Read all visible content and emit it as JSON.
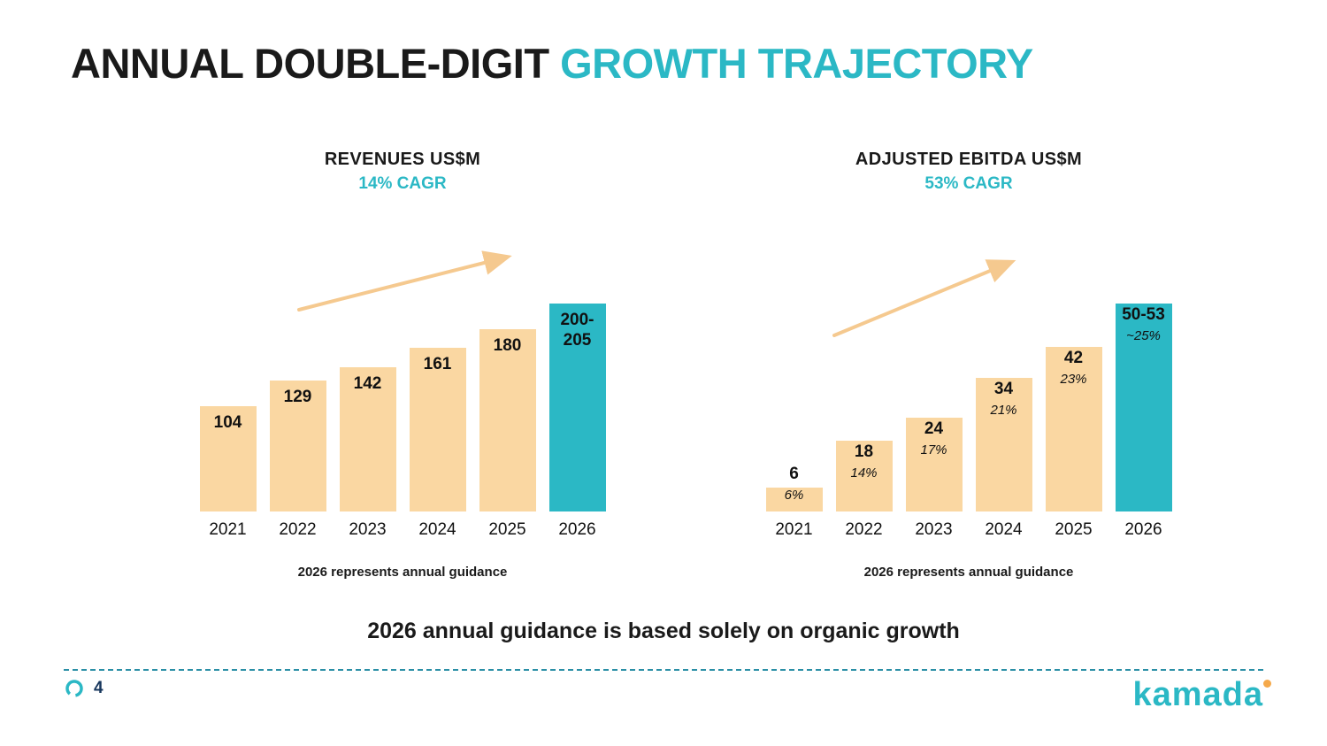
{
  "slide": {
    "title_black": "ANNUAL DOUBLE-DIGIT",
    "title_teal": "GROWTH TRAJECTORY",
    "statement": "2026 annual guidance is based solely on organic growth",
    "page_number": "4",
    "logo_text": "kamada"
  },
  "colors": {
    "teal": "#2BB8C5",
    "tan": "#FAD7A2",
    "arrow": "#F5C98F",
    "dashed_line": "#2A8FA6",
    "page_number": "#16365C",
    "logo_dot": "#F5A94B",
    "text": "#1A1A1A"
  },
  "chart_data": [
    {
      "type": "bar",
      "title": "REVENUES US$M",
      "subtitle": "14% CAGR",
      "categories": [
        "2021",
        "2022",
        "2023",
        "2024",
        "2025",
        "2026"
      ],
      "values": [
        104,
        129,
        142,
        161,
        180,
        205
      ],
      "labels": [
        "104",
        "129",
        "142",
        "161",
        "180",
        "200-205"
      ],
      "highlight_index": 5,
      "caption": "2026 represents annual guidance",
      "ylim": [
        0,
        205
      ],
      "grid": false,
      "legend_position": "none"
    },
    {
      "type": "bar",
      "title": "ADJUSTED EBITDA US$M",
      "subtitle": "53% CAGR",
      "categories": [
        "2021",
        "2022",
        "2023",
        "2024",
        "2025",
        "2026"
      ],
      "values": [
        6,
        18,
        24,
        34,
        42,
        53
      ],
      "labels": [
        "6",
        "18",
        "24",
        "34",
        "42",
        "50-53"
      ],
      "sublabels": [
        "6%",
        "14%",
        "17%",
        "21%",
        "23%",
        "~25%"
      ],
      "highlight_index": 5,
      "caption": "2026 represents annual guidance",
      "ylim": [
        0,
        53
      ],
      "grid": false,
      "legend_position": "none"
    }
  ]
}
